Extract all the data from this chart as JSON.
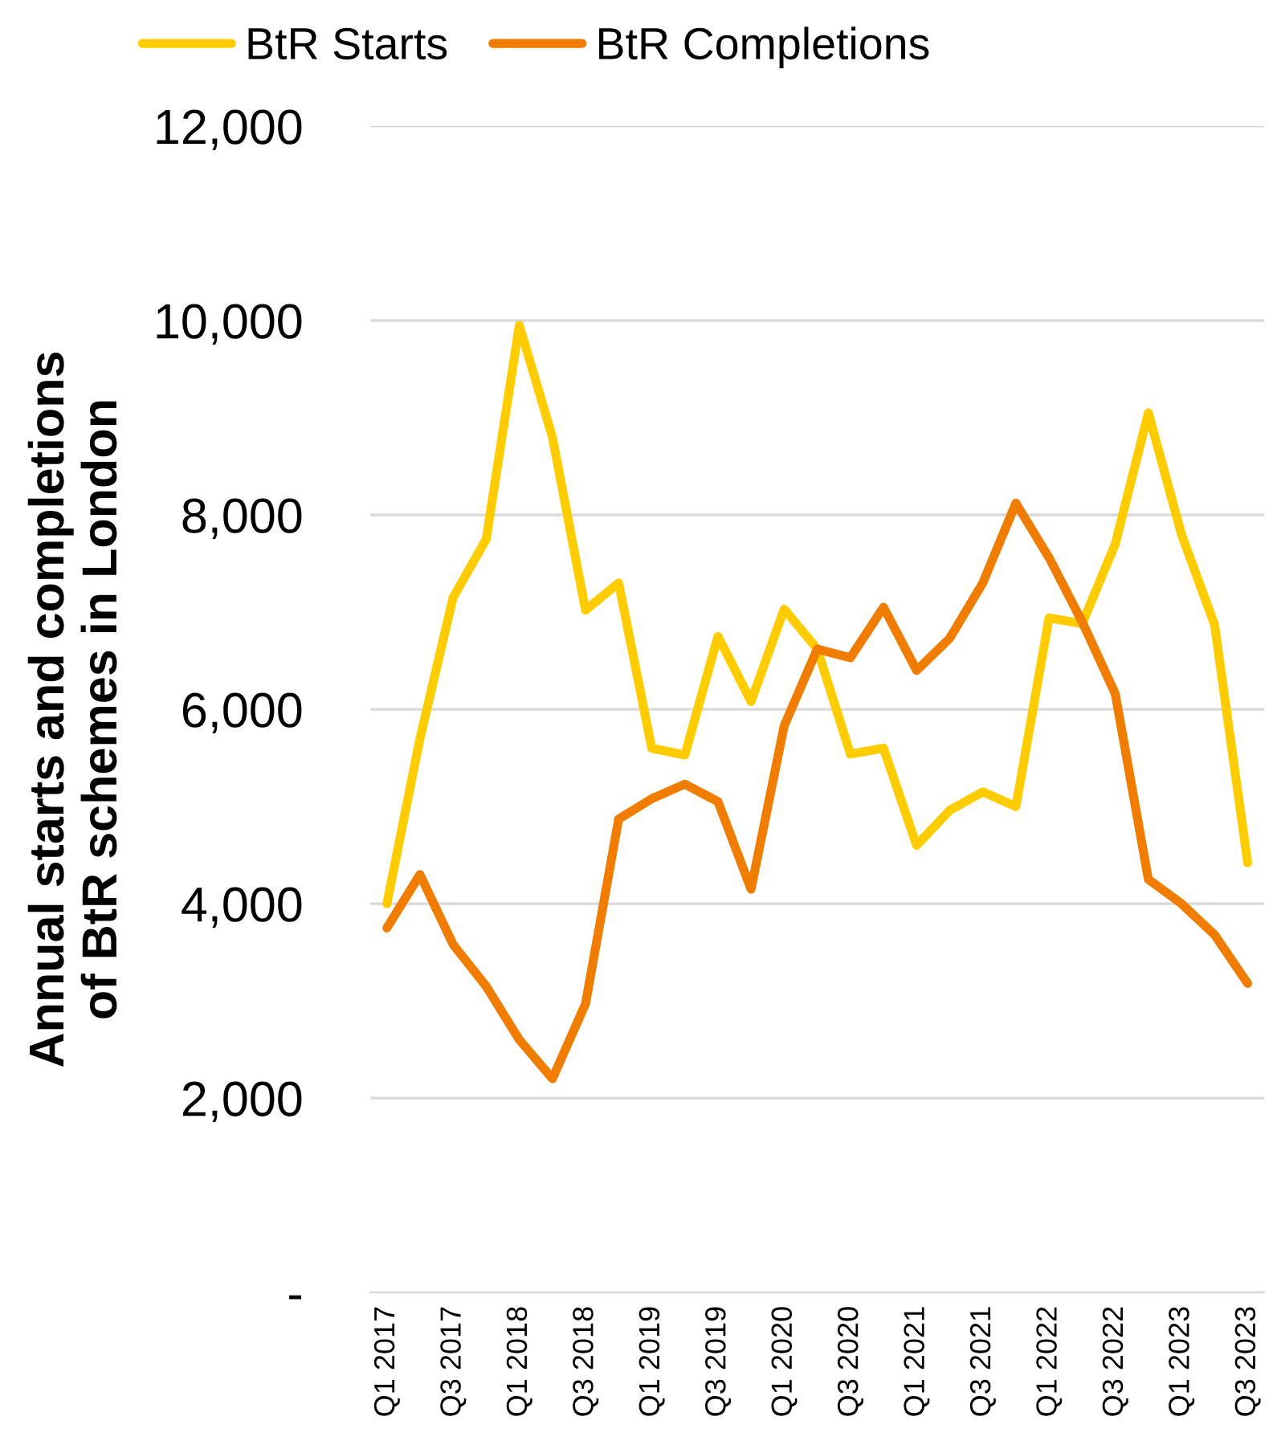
{
  "chart_data": {
    "type": "line",
    "ylabel": "Annual starts and completions\nof BtR schemes in London",
    "categories": [
      "Q1 2017",
      null,
      "Q3 2017",
      null,
      "Q1 2018",
      null,
      "Q3 2018",
      null,
      "Q1 2019",
      null,
      "Q3 2019",
      null,
      "Q1 2020",
      null,
      "Q3 2020",
      null,
      "Q1 2021",
      null,
      "Q3 2021",
      null,
      "Q1 2022",
      null,
      "Q3 2022",
      null,
      "Q1 2023",
      null,
      "Q3 2023"
    ],
    "series": [
      {
        "name": "BtR Starts",
        "color": "#ffcc00",
        "values": [
          4000,
          5700,
          7150,
          7750,
          9950,
          8800,
          7020,
          7300,
          5600,
          5530,
          6750,
          6080,
          7030,
          6620,
          5540,
          5600,
          4600,
          4960,
          5150,
          5000,
          6940,
          6880,
          7700,
          9050,
          7800,
          6870,
          4420
        ]
      },
      {
        "name": "BtR Completions",
        "color": "#f07c00",
        "values": [
          3750,
          4300,
          3580,
          3150,
          2600,
          2200,
          2970,
          4870,
          5080,
          5230,
          5050,
          4150,
          5830,
          6620,
          6530,
          7050,
          6400,
          6730,
          7300,
          8120,
          7560,
          6900,
          6160,
          4250,
          4000,
          3680,
          3180
        ]
      }
    ],
    "ylim": [
      0,
      12000
    ],
    "yticks": [
      {
        "value": 0,
        "label": "-"
      },
      {
        "value": 2000,
        "label": "2,000"
      },
      {
        "value": 4000,
        "label": "4,000"
      },
      {
        "value": 6000,
        "label": "6,000"
      },
      {
        "value": 8000,
        "label": "8,000"
      },
      {
        "value": 10000,
        "label": "10,000"
      },
      {
        "value": 12000,
        "label": "12,000"
      }
    ],
    "grid": "y",
    "legend": "top",
    "marker": "none",
    "line_style": "solid"
  }
}
